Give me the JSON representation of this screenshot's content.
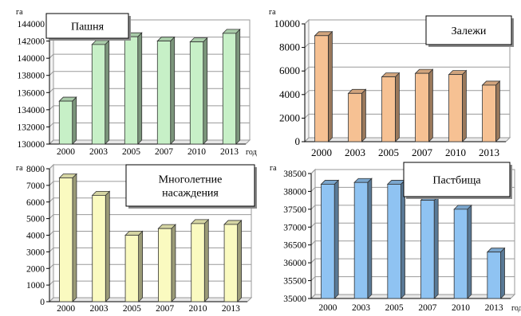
{
  "chart_data": [
    {
      "type": "bar",
      "title": "Пашня",
      "ylabel": "га",
      "xlabel": "год",
      "categories": [
        "2000",
        "2003",
        "2005",
        "2007",
        "2010",
        "2013"
      ],
      "values": [
        135000,
        141600,
        142500,
        142000,
        141900,
        142900
      ],
      "ylim": [
        130000,
        144000
      ],
      "yticks": [
        130000,
        132000,
        134000,
        136000,
        138000,
        140000,
        142000,
        144000
      ],
      "color": "#c7f0c7",
      "grid": true
    },
    {
      "type": "bar",
      "title": "Залежи",
      "ylabel": "га",
      "xlabel": "",
      "categories": [
        "2000",
        "2003",
        "2005",
        "2007",
        "2010",
        "2013"
      ],
      "values": [
        9000,
        4100,
        5500,
        5800,
        5700,
        4800
      ],
      "ylim": [
        0,
        10000
      ],
      "yticks": [
        0,
        2000,
        4000,
        6000,
        8000,
        10000
      ],
      "color": "#f6c193",
      "grid": true
    },
    {
      "type": "bar",
      "title": "Многолетние насаждения",
      "ylabel": "га",
      "xlabel": "",
      "categories": [
        "2000",
        "2003",
        "2005",
        "2007",
        "2010",
        "2013"
      ],
      "values": [
        7450,
        6400,
        4000,
        4400,
        4700,
        4650
      ],
      "ylim": [
        0,
        8000
      ],
      "yticks": [
        0,
        1000,
        2000,
        3000,
        4000,
        5000,
        6000,
        7000,
        8000
      ],
      "color": "#fafac0",
      "grid": true
    },
    {
      "type": "bar",
      "title": "Пастбища",
      "ylabel": "га",
      "xlabel": "год",
      "categories": [
        "2000",
        "2003",
        "2005",
        "2007",
        "2010",
        "2013"
      ],
      "values": [
        38200,
        38250,
        38200,
        37750,
        37500,
        36300
      ],
      "ylim": [
        35000,
        38500
      ],
      "yticks": [
        35000,
        35500,
        36000,
        36500,
        37000,
        37500,
        38000,
        38500
      ],
      "color": "#8fc3f2",
      "grid": true
    }
  ]
}
